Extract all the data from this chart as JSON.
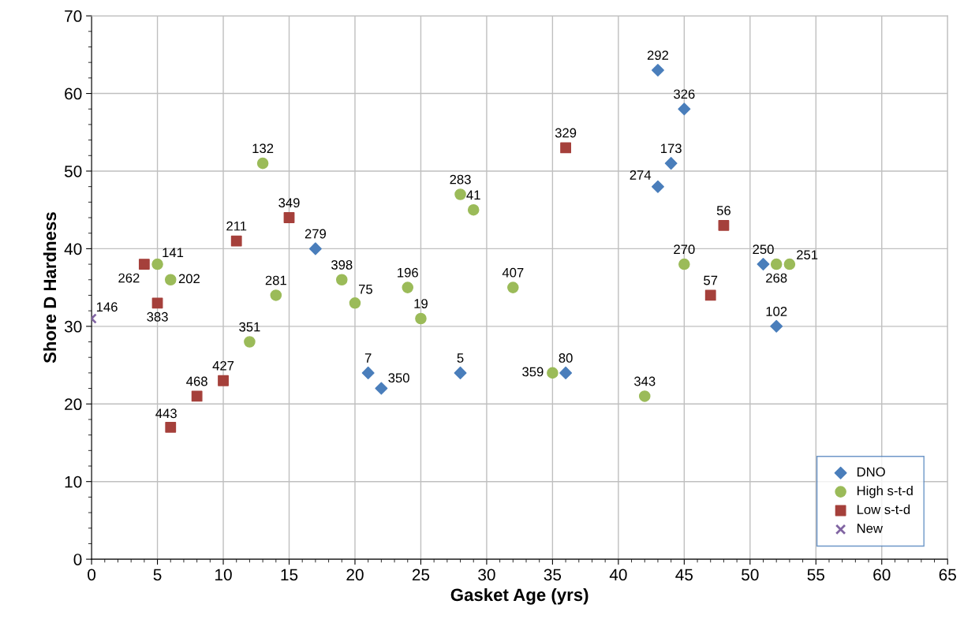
{
  "chart_data": {
    "type": "scatter",
    "xlabel": "Gasket Age (yrs)",
    "ylabel": "Shore D Hardness",
    "xlim": [
      0,
      65
    ],
    "xticks": [
      0,
      5,
      10,
      15,
      20,
      25,
      30,
      35,
      40,
      45,
      50,
      55,
      60,
      65
    ],
    "ylim": [
      0,
      70
    ],
    "yticks": [
      0,
      10,
      20,
      30,
      40,
      50,
      60,
      70
    ],
    "grid": true,
    "legend": "bottom right",
    "series": [
      {
        "name": "DNO",
        "color": "#4a7ebb",
        "marker": "diamond",
        "x": [
          43,
          45,
          44,
          43,
          17,
          21,
          22,
          28,
          36,
          51,
          52
        ],
        "values": [
          63,
          58,
          51,
          48,
          40,
          24,
          22,
          24,
          24,
          38,
          30
        ]
      },
      {
        "name": "High s-t-d",
        "color": "#9bbb59",
        "marker": "circle",
        "x": [
          5,
          6,
          13,
          14,
          12,
          19,
          20,
          24,
          25,
          28,
          29,
          32,
          35,
          42,
          45,
          52,
          53
        ],
        "values": [
          38,
          36,
          51,
          34,
          28,
          36,
          33,
          35,
          31,
          47,
          45,
          35,
          24,
          21,
          38,
          38,
          38
        ]
      },
      {
        "name": "Low s-t-d",
        "color": "#a5403b",
        "marker": "square",
        "x": [
          4,
          5,
          6,
          8,
          10,
          11,
          15,
          36,
          48,
          47
        ],
        "values": [
          38,
          33,
          17,
          21,
          23,
          41,
          44,
          53,
          43,
          34
        ]
      },
      {
        "name": "New",
        "color": "#8064a2",
        "marker": "cross",
        "x": [
          0
        ],
        "values": [
          31
        ]
      }
    ],
    "annotations": [
      {
        "text": "292",
        "x": 43,
        "y": 63
      },
      {
        "text": "326",
        "x": 45,
        "y": 58
      },
      {
        "text": "173",
        "x": 44,
        "y": 51
      },
      {
        "text": "274",
        "x": 43,
        "y": 48
      },
      {
        "text": "279",
        "x": 17,
        "y": 40
      },
      {
        "text": "7",
        "x": 21,
        "y": 24
      },
      {
        "text": "350",
        "x": 22,
        "y": 22
      },
      {
        "text": "5",
        "x": 28,
        "y": 24
      },
      {
        "text": "80",
        "x": 36,
        "y": 24
      },
      {
        "text": "250",
        "x": 51,
        "y": 38
      },
      {
        "text": "102",
        "x": 52,
        "y": 30
      },
      {
        "text": "141",
        "x": 5,
        "y": 38
      },
      {
        "text": "202",
        "x": 6,
        "y": 36
      },
      {
        "text": "132",
        "x": 13,
        "y": 51
      },
      {
        "text": "281",
        "x": 14,
        "y": 34
      },
      {
        "text": "351",
        "x": 12,
        "y": 28
      },
      {
        "text": "398",
        "x": 19,
        "y": 36
      },
      {
        "text": "75",
        "x": 20,
        "y": 33
      },
      {
        "text": "196",
        "x": 24,
        "y": 35
      },
      {
        "text": "19",
        "x": 25,
        "y": 31
      },
      {
        "text": "283",
        "x": 28,
        "y": 47
      },
      {
        "text": "41",
        "x": 29,
        "y": 45
      },
      {
        "text": "407",
        "x": 32,
        "y": 35
      },
      {
        "text": "359",
        "x": 35,
        "y": 24
      },
      {
        "text": "343",
        "x": 42,
        "y": 21
      },
      {
        "text": "270",
        "x": 45,
        "y": 38
      },
      {
        "text": "268",
        "x": 52,
        "y": 38
      },
      {
        "text": "251",
        "x": 53,
        "y": 38
      },
      {
        "text": "262",
        "x": 4,
        "y": 38
      },
      {
        "text": "383",
        "x": 5,
        "y": 33
      },
      {
        "text": "443",
        "x": 6,
        "y": 17
      },
      {
        "text": "468",
        "x": 8,
        "y": 21
      },
      {
        "text": "427",
        "x": 10,
        "y": 23
      },
      {
        "text": "211",
        "x": 11,
        "y": 41
      },
      {
        "text": "349",
        "x": 15,
        "y": 44
      },
      {
        "text": "329",
        "x": 36,
        "y": 53
      },
      {
        "text": "56",
        "x": 48,
        "y": 43
      },
      {
        "text": "57",
        "x": 47,
        "y": 34
      },
      {
        "text": "146",
        "x": 0,
        "y": 31
      }
    ]
  }
}
